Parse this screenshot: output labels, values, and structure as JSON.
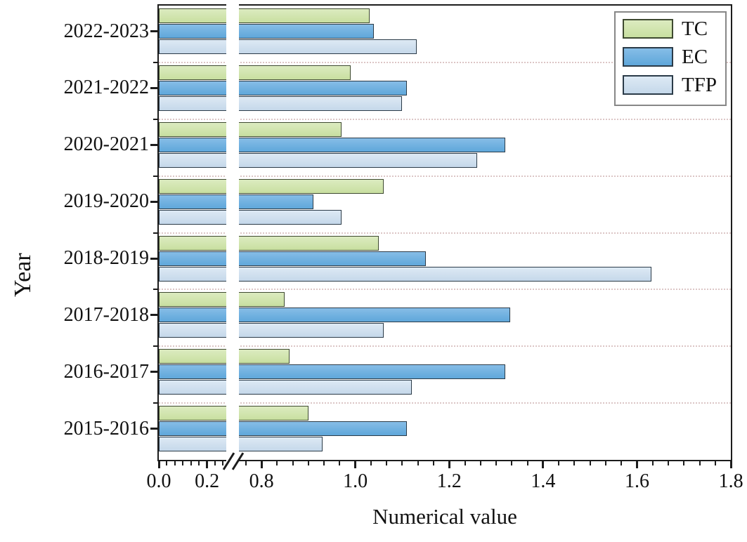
{
  "chart_data": {
    "type": "bar",
    "orientation": "horizontal",
    "title": "",
    "xlabel": "Numerical value",
    "ylabel": "Year",
    "categories": [
      "2022-2023",
      "2021-2022",
      "2020-2021",
      "2019-2020",
      "2018-2019",
      "2017-2018",
      "2016-2017",
      "2015-2016"
    ],
    "series": [
      {
        "name": "TC",
        "fill": "#c8dfa0",
        "fill_light": "#dcebc0",
        "border": "#3e4a30",
        "values": [
          1.03,
          0.99,
          0.97,
          1.06,
          1.05,
          0.85,
          0.86,
          0.9
        ]
      },
      {
        "name": "EC",
        "fill": "#5fa7da",
        "fill_light": "#86bde7",
        "border": "#2b3b48",
        "values": [
          1.04,
          1.11,
          1.32,
          0.91,
          1.15,
          1.33,
          1.32,
          1.11
        ]
      },
      {
        "name": "TFP",
        "fill": "#c5d8ea",
        "fill_light": "#dde9f4",
        "border": "#2b3b48",
        "values": [
          1.13,
          1.1,
          1.26,
          0.97,
          1.63,
          1.06,
          1.12,
          0.93
        ]
      }
    ],
    "x_axis": {
      "tick_labels": [
        "0.0",
        "0.2",
        "0.8",
        "1.0",
        "1.2",
        "1.4",
        "1.6",
        "1.8"
      ],
      "tick_values": [
        0.0,
        0.2,
        0.8,
        1.0,
        1.2,
        1.4,
        1.6,
        1.8
      ],
      "range": [
        0.0,
        1.8
      ],
      "break": {
        "hidden_from": 0.28,
        "hidden_to": 0.75
      },
      "minor_per_major": 5
    },
    "legend": {
      "position": "top-right",
      "entries": [
        "TC",
        "EC",
        "TFP"
      ]
    },
    "grid": "dotted separators between year groups",
    "colors": {
      "frame": "#1c1c1c",
      "separator": "#dcc6c6",
      "legend_border": "#878787",
      "background": "#ffffff"
    }
  }
}
